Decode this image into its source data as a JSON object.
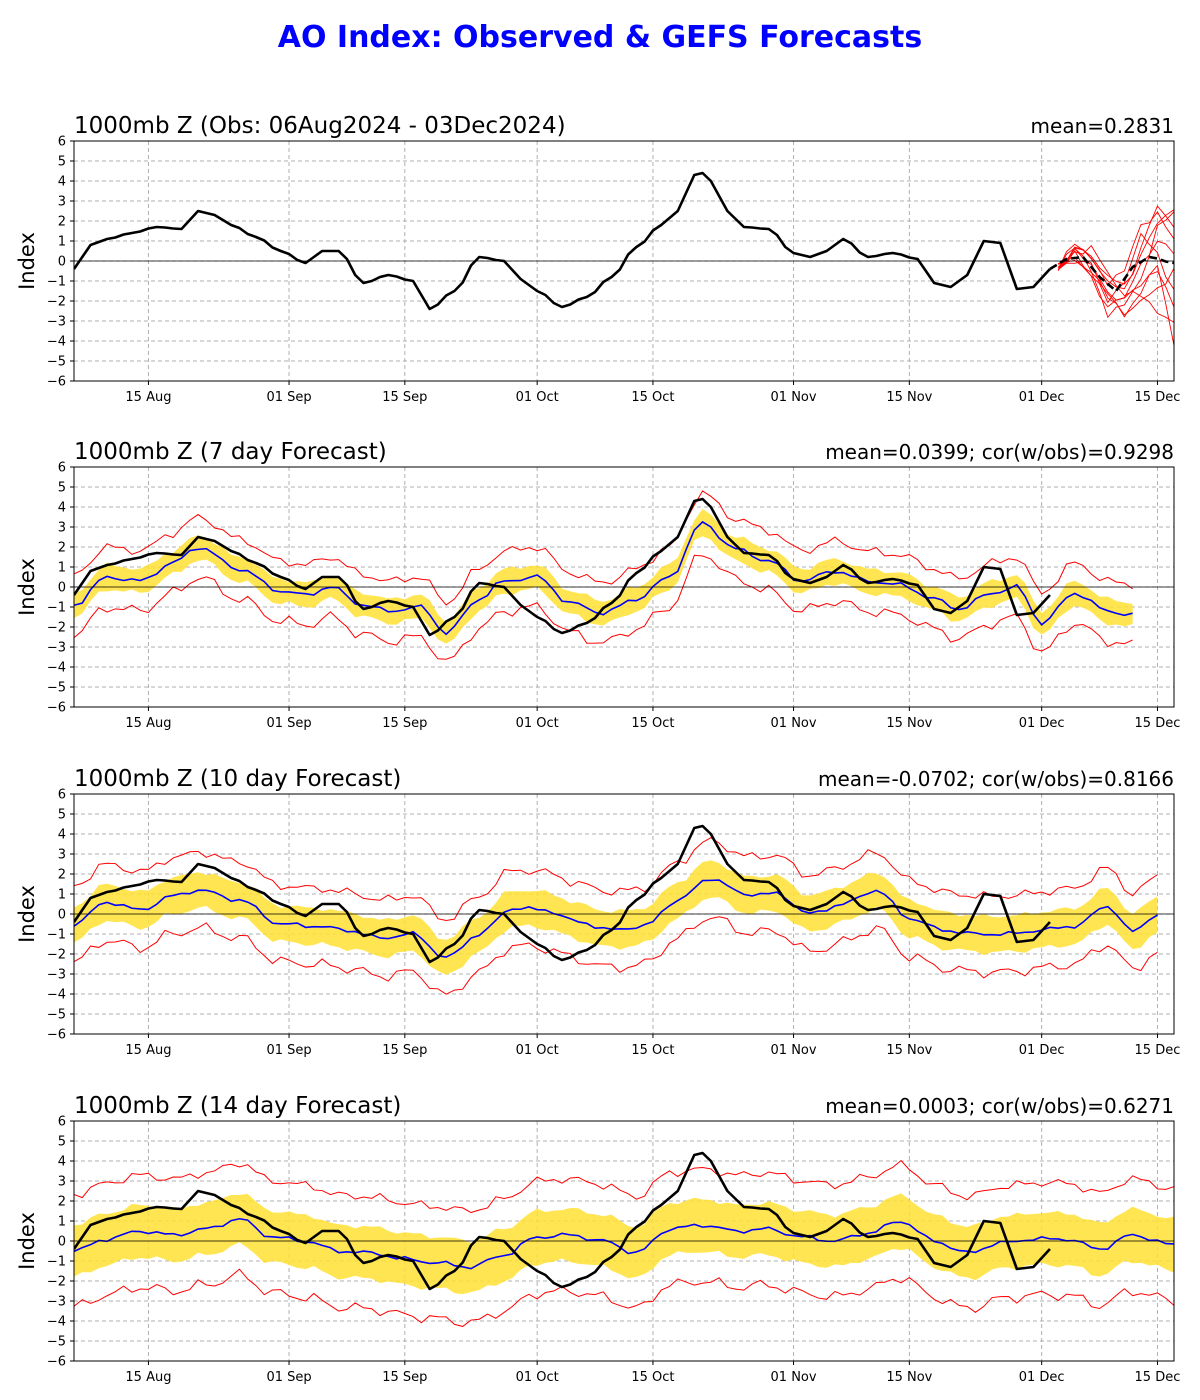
{
  "title": "AO Index: Observed & GEFS Forecasts",
  "colors": {
    "title": "#0000ff",
    "observed": "#000000",
    "forecast_mean": "#0000ff",
    "spread_band": "#ffe033",
    "extremes": "#ff0000",
    "ensemble_members": "#ff0000",
    "grid": "#b0b0b0"
  },
  "chart_data": [
    {
      "type": "line",
      "title": "1000mb Z (Obs: 06Aug2024 - 03Dec2024)",
      "stat": "mean=0.2831",
      "ylabel": "Index",
      "ylim": [
        -6,
        6
      ],
      "yticks": [
        -6,
        -5,
        -4,
        -3,
        -2,
        -1,
        0,
        1,
        2,
        3,
        4,
        5,
        6
      ],
      "xlim": [
        "2024-08-06",
        "2024-12-17"
      ],
      "xticks": [
        {
          "date": "2024-08-15",
          "label": "15 Aug"
        },
        {
          "date": "2024-09-01",
          "label": "01 Sep"
        },
        {
          "date": "2024-09-15",
          "label": "15 Sep"
        },
        {
          "date": "2024-10-01",
          "label": "01 Oct"
        },
        {
          "date": "2024-10-15",
          "label": "15 Oct"
        },
        {
          "date": "2024-11-01",
          "label": "01 Nov"
        },
        {
          "date": "2024-11-15",
          "label": "15 Nov"
        },
        {
          "date": "2024-12-01",
          "label": "01 Dec"
        },
        {
          "date": "2024-12-15",
          "label": "15 Dec"
        }
      ],
      "grid": true,
      "series": [
        {
          "kind": "observed",
          "x": [
            "2024-08-06",
            "2024-08-08",
            "2024-08-10",
            "2024-08-13",
            "2024-08-16",
            "2024-08-19",
            "2024-08-21",
            "2024-08-23",
            "2024-08-25",
            "2024-08-28",
            "2024-08-31",
            "2024-09-03",
            "2024-09-05",
            "2024-09-07",
            "2024-09-10",
            "2024-09-13",
            "2024-09-16",
            "2024-09-18",
            "2024-09-21",
            "2024-09-24",
            "2024-09-27",
            "2024-09-29",
            "2024-10-01",
            "2024-10-04",
            "2024-10-07",
            "2024-10-10",
            "2024-10-13",
            "2024-10-16",
            "2024-10-18",
            "2024-10-20",
            "2024-10-21",
            "2024-10-22",
            "2024-10-24",
            "2024-10-26",
            "2024-10-29",
            "2024-11-01",
            "2024-11-03",
            "2024-11-05",
            "2024-11-07",
            "2024-11-10",
            "2024-11-13",
            "2024-11-16",
            "2024-11-18",
            "2024-11-20",
            "2024-11-22",
            "2024-11-24",
            "2024-11-26",
            "2024-11-28",
            "2024-11-30",
            "2024-12-02"
          ],
          "y": [
            -0.4,
            0.8,
            1.1,
            1.4,
            1.7,
            1.6,
            2.5,
            2.3,
            1.8,
            1.2,
            0.5,
            -0.1,
            0.5,
            0.5,
            -1.1,
            -0.7,
            -1.0,
            -2.4,
            -1.5,
            0.2,
            0.0,
            -0.9,
            -1.5,
            -2.3,
            -1.8,
            -0.8,
            0.7,
            1.8,
            2.5,
            4.3,
            4.4,
            4.0,
            2.5,
            1.7,
            1.6,
            0.4,
            0.2,
            0.5,
            1.1,
            0.2,
            0.4,
            0.1,
            -1.1,
            -1.3,
            -0.7,
            1.0,
            0.9,
            -1.4,
            -1.3,
            -0.4
          ]
        },
        {
          "kind": "forecast-observed",
          "x": [
            "2024-12-02",
            "2024-12-04",
            "2024-12-06",
            "2024-12-08",
            "2024-12-10",
            "2024-12-12",
            "2024-12-14",
            "2024-12-17"
          ],
          "y": [
            -0.4,
            0.1,
            0.2,
            -0.8,
            -1.5,
            -0.3,
            0.2,
            -0.1
          ]
        },
        {
          "kind": "members",
          "x": [
            "2024-12-03",
            "2024-12-05",
            "2024-12-07",
            "2024-12-09",
            "2024-12-11",
            "2024-12-13",
            "2024-12-15",
            "2024-12-17"
          ],
          "members": [
            [
              -0.3,
              0.6,
              -0.5,
              -2.6,
              -2.3,
              -0.8,
              1.6,
              2.4
            ],
            [
              -0.3,
              0.4,
              -0.1,
              -1.7,
              -2.8,
              -1.4,
              -0.3,
              -4.1
            ],
            [
              -0.3,
              0.8,
              0.3,
              -1.2,
              -1.4,
              0.6,
              2.7,
              1.9
            ],
            [
              -0.3,
              0.2,
              -0.6,
              -2.1,
              -0.9,
              1.2,
              0.4,
              -1.5
            ],
            [
              -0.3,
              0.5,
              0.6,
              -0.6,
              -1.6,
              -1.8,
              -2.4,
              -3.2
            ],
            [
              -0.3,
              0.1,
              -0.3,
              -1.5,
              -2.0,
              -0.2,
              1.1,
              0.3
            ],
            [
              -0.3,
              0.7,
              0.1,
              -1.0,
              -0.6,
              1.9,
              2.3,
              1.0
            ],
            [
              -0.3,
              0.3,
              -0.8,
              -2.3,
              -1.9,
              -1.0,
              -0.6,
              -2.2
            ],
            [
              -0.3,
              0.6,
              0.4,
              -0.9,
              -1.2,
              0.3,
              1.8,
              2.8
            ],
            [
              -0.3,
              0.0,
              -0.4,
              -1.9,
              -2.5,
              -2.1,
              -1.4,
              -0.4
            ]
          ]
        }
      ]
    },
    {
      "type": "line",
      "title": "1000mb Z (7 day Forecast)",
      "stat": "mean=0.0399; cor(w/obs)=0.9298",
      "ylabel": "Index",
      "ylim": [
        -6,
        6
      ],
      "series": [
        {
          "kind": "observed",
          "ref": "observed"
        },
        {
          "kind": "mean",
          "x": [
            "2024-08-06",
            "2024-08-10",
            "2024-08-14",
            "2024-08-18",
            "2024-08-21",
            "2024-08-26",
            "2024-08-31",
            "2024-09-03",
            "2024-09-06",
            "2024-09-10",
            "2024-09-13",
            "2024-09-17",
            "2024-09-20",
            "2024-09-24",
            "2024-09-27",
            "2024-10-01",
            "2024-10-05",
            "2024-10-09",
            "2024-10-13",
            "2024-10-17",
            "2024-10-21",
            "2024-10-25",
            "2024-10-29",
            "2024-11-02",
            "2024-11-06",
            "2024-11-10",
            "2024-11-14",
            "2024-11-18",
            "2024-11-21",
            "2024-11-25",
            "2024-11-28",
            "2024-12-01",
            "2024-12-05",
            "2024-12-09",
            "2024-12-12"
          ],
          "y": [
            -0.9,
            0.5,
            0.3,
            1.2,
            2.0,
            0.9,
            -0.2,
            -0.4,
            0.0,
            -0.9,
            -1.2,
            -1.0,
            -2.3,
            -0.6,
            0.3,
            0.5,
            -0.8,
            -1.3,
            -0.6,
            0.5,
            3.2,
            1.9,
            1.3,
            0.3,
            0.8,
            0.3,
            0.1,
            -0.6,
            -1.1,
            -0.3,
            0.0,
            -1.8,
            -0.3,
            -1.2,
            -1.4
          ],
          "spread": 0.6,
          "extreme": 1.5
        }
      ]
    },
    {
      "type": "line",
      "title": "1000mb Z (10 day Forecast)",
      "stat": "mean=-0.0702; cor(w/obs)=0.8166",
      "ylabel": "Index",
      "ylim": [
        -6,
        6
      ],
      "series": [
        {
          "kind": "observed",
          "ref": "observed"
        },
        {
          "kind": "mean",
          "x": [
            "2024-08-06",
            "2024-08-10",
            "2024-08-14",
            "2024-08-18",
            "2024-08-21",
            "2024-08-26",
            "2024-08-31",
            "2024-09-04",
            "2024-09-08",
            "2024-09-12",
            "2024-09-16",
            "2024-09-20",
            "2024-09-24",
            "2024-09-28",
            "2024-10-02",
            "2024-10-06",
            "2024-10-10",
            "2024-10-14",
            "2024-10-18",
            "2024-10-22",
            "2024-10-26",
            "2024-10-30",
            "2024-11-03",
            "2024-11-07",
            "2024-11-11",
            "2024-11-15",
            "2024-11-19",
            "2024-11-23",
            "2024-11-27",
            "2024-12-01",
            "2024-12-05",
            "2024-12-09",
            "2024-12-12",
            "2024-12-15"
          ],
          "y": [
            -0.5,
            0.6,
            0.2,
            0.9,
            1.2,
            0.7,
            -0.5,
            -0.6,
            -0.8,
            -1.2,
            -1.0,
            -2.2,
            -1.0,
            0.3,
            0.2,
            -0.4,
            -0.8,
            -0.6,
            0.7,
            1.8,
            1.0,
            1.0,
            0.0,
            0.5,
            1.2,
            -0.2,
            -0.8,
            -1.0,
            -1.0,
            -0.8,
            -0.6,
            0.4,
            -0.9,
            0.0
          ],
          "spread": 0.9,
          "extreme": 1.9
        }
      ]
    },
    {
      "type": "line",
      "title": "1000mb Z (14 day Forecast)",
      "stat": "mean=0.0003; cor(w/obs)=0.6271",
      "ylabel": "Index",
      "ylim": [
        -6,
        6
      ],
      "series": [
        {
          "kind": "observed",
          "ref": "observed"
        },
        {
          "kind": "mean",
          "x": [
            "2024-08-06",
            "2024-08-10",
            "2024-08-14",
            "2024-08-18",
            "2024-08-22",
            "2024-08-26",
            "2024-08-30",
            "2024-09-03",
            "2024-09-07",
            "2024-09-11",
            "2024-09-15",
            "2024-09-19",
            "2024-09-23",
            "2024-09-27",
            "2024-10-01",
            "2024-10-05",
            "2024-10-09",
            "2024-10-13",
            "2024-10-17",
            "2024-10-21",
            "2024-10-25",
            "2024-10-29",
            "2024-11-02",
            "2024-11-06",
            "2024-11-10",
            "2024-11-14",
            "2024-11-18",
            "2024-11-22",
            "2024-11-26",
            "2024-11-30",
            "2024-12-04",
            "2024-12-08",
            "2024-12-12",
            "2024-12-17"
          ],
          "y": [
            -0.5,
            0.1,
            0.5,
            0.3,
            0.6,
            1.1,
            0.2,
            0.0,
            -0.5,
            -0.6,
            -0.9,
            -1.1,
            -1.3,
            -0.7,
            0.2,
            0.3,
            0.0,
            -0.6,
            0.6,
            0.8,
            0.5,
            0.6,
            0.2,
            0.0,
            0.4,
            1.0,
            0.0,
            -0.6,
            -0.1,
            0.1,
            0.1,
            -0.4,
            0.3,
            -0.2
          ],
          "spread": 1.3,
          "extreme": 2.8
        }
      ]
    }
  ]
}
